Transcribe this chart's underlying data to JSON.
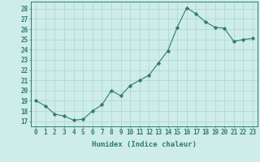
{
  "x": [
    0,
    1,
    2,
    3,
    4,
    5,
    6,
    7,
    8,
    9,
    10,
    11,
    12,
    13,
    14,
    15,
    16,
    17,
    18,
    19,
    20,
    21,
    22,
    23
  ],
  "y": [
    19.0,
    18.5,
    17.7,
    17.5,
    17.1,
    17.2,
    18.0,
    18.6,
    20.0,
    19.5,
    20.5,
    21.0,
    21.5,
    22.7,
    23.9,
    26.2,
    28.1,
    27.5,
    26.7,
    26.2,
    26.1,
    24.8,
    25.0,
    25.1
  ],
  "xlabel": "Humidex (Indice chaleur)",
  "xlim": [
    -0.5,
    23.5
  ],
  "ylim": [
    16.5,
    28.7
  ],
  "yticks": [
    17,
    18,
    19,
    20,
    21,
    22,
    23,
    24,
    25,
    26,
    27,
    28
  ],
  "xticks": [
    0,
    1,
    2,
    3,
    4,
    5,
    6,
    7,
    8,
    9,
    10,
    11,
    12,
    13,
    14,
    15,
    16,
    17,
    18,
    19,
    20,
    21,
    22,
    23
  ],
  "xtick_labels": [
    "0",
    "1",
    "2",
    "3",
    "4",
    "5",
    "6",
    "7",
    "8",
    "9",
    "10",
    "11",
    "12",
    "13",
    "14",
    "15",
    "16",
    "17",
    "18",
    "19",
    "20",
    "21",
    "22",
    "23"
  ],
  "line_color": "#2e7d6e",
  "marker": "D",
  "marker_size": 2.2,
  "bg_color": "#ceecea",
  "grid_color": "#b0d9d4",
  "label_fontsize": 6.5,
  "tick_fontsize": 5.5
}
